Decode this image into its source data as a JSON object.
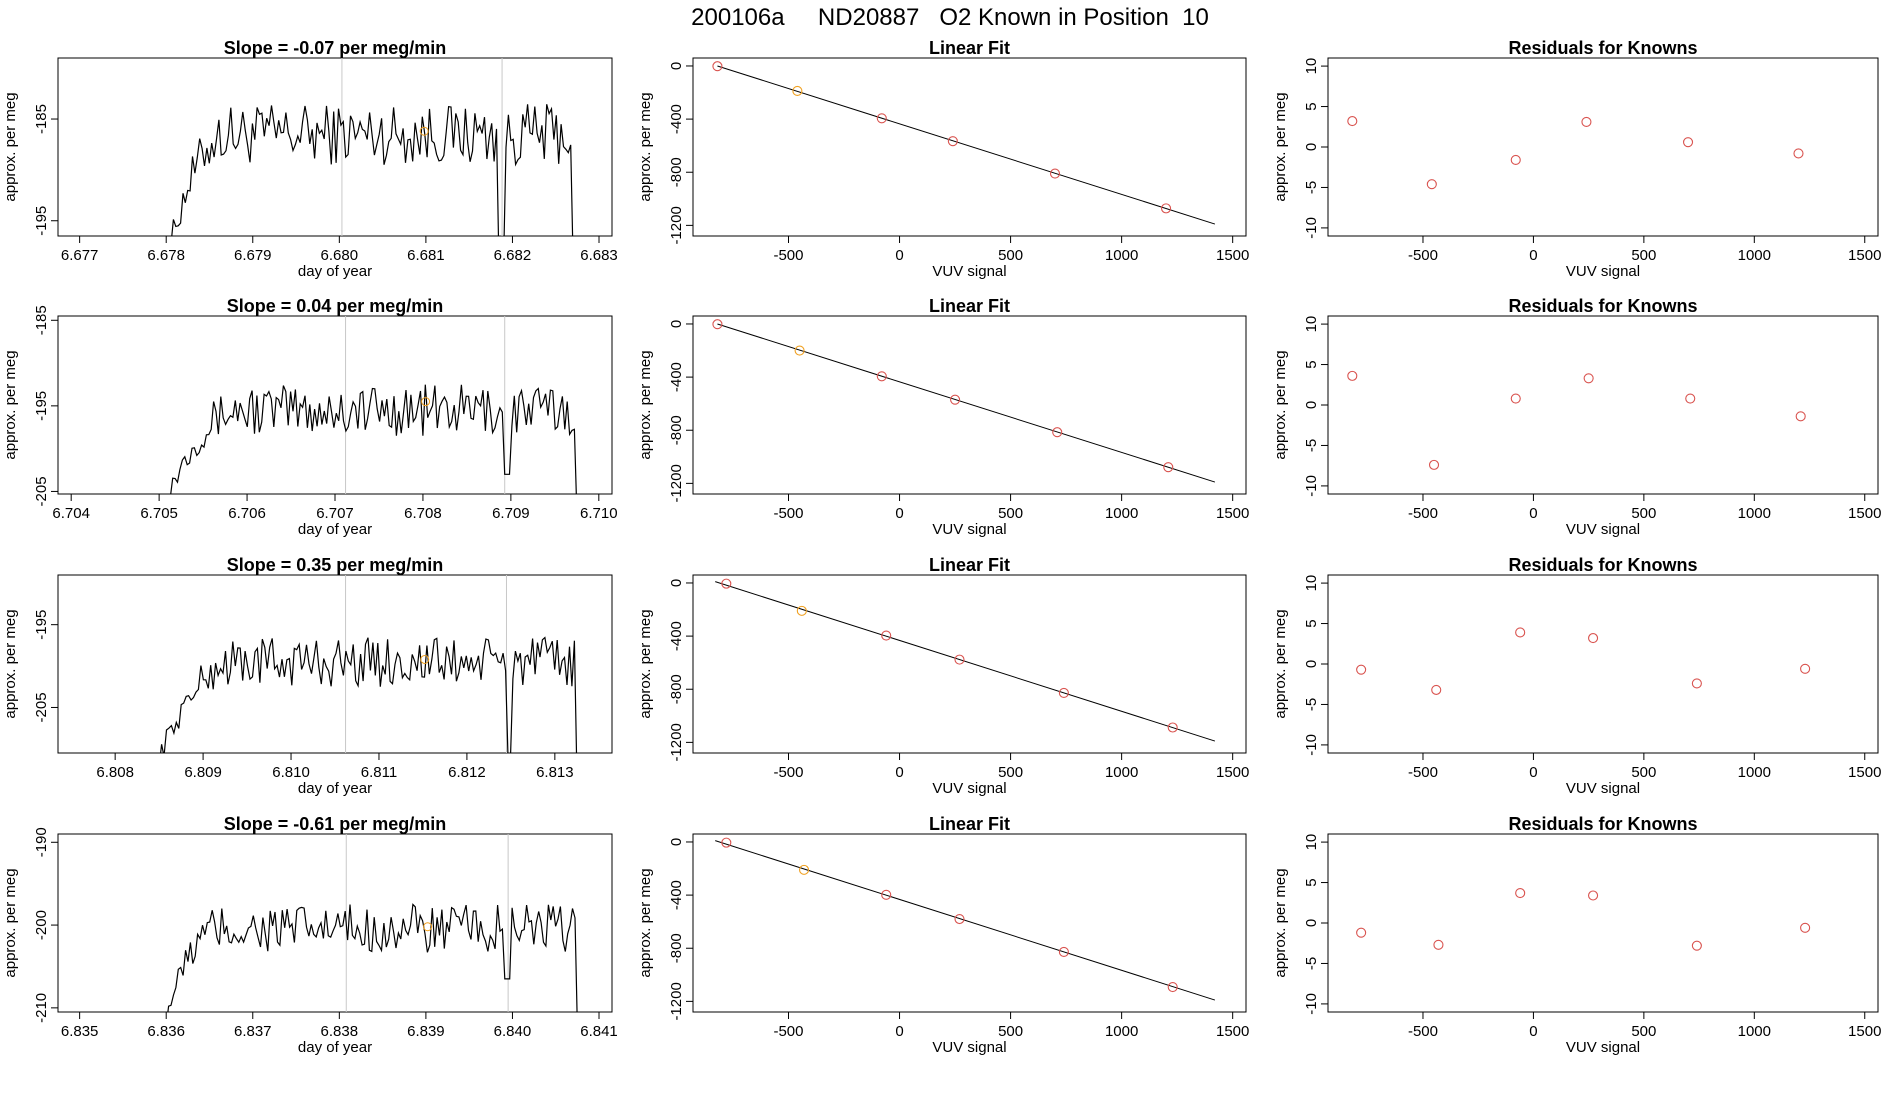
{
  "title": "200106a     ND20887   O2 Known in Position  10",
  "colors": {
    "trace": "#000000",
    "known": "#d9534f",
    "highlight": "#f0a020",
    "vline": "#c8c8c8",
    "frame": "#000000"
  },
  "rows": [
    {
      "timeseries": {
        "title": "Slope =  -0.07  per meg/min",
        "xlabel": "day of year",
        "ylabel": "approx. per meg",
        "xlim": [
          6.67675,
          6.68315
        ],
        "ylim": [
          -196.5,
          -179
        ],
        "xticks": [
          6.677,
          6.678,
          6.679,
          6.68,
          6.681,
          6.682,
          6.683
        ],
        "xtick_labels": [
          "6.677",
          "6.678",
          "6.679",
          "6.680",
          "6.681",
          "6.682",
          "6.683"
        ],
        "yticks": [
          -185,
          -195
        ],
        "ytick_labels": [
          "-185",
          "-195"
        ],
        "vlines": [
          6.68003,
          6.68188
        ],
        "t0": 6.678,
        "t1": 6.6827,
        "start": -199,
        "plateau": -186.5,
        "rise": 0.0007,
        "dips": [
          [
            6.68188,
            -199
          ]
        ],
        "highlight": [
          6.68098,
          -186.2
        ]
      },
      "fit": {
        "title": "Linear Fit",
        "xlabel": "VUV signal",
        "ylabel": "approx. per meg",
        "xlim": [
          -930,
          1560
        ],
        "ylim": [
          -1280,
          60
        ],
        "xticks": [
          -500,
          0,
          500,
          1000,
          1500
        ],
        "xtick_labels": [
          "-500",
          "0",
          "500",
          "1000",
          "1500"
        ],
        "yticks": [
          0,
          -400,
          -800,
          -1200
        ],
        "ytick_labels": [
          "0",
          "-400",
          "-800",
          "-1200"
        ],
        "line": [
          [
            -820,
            0
          ],
          [
            1420,
            -1190
          ]
        ],
        "points": [
          [
            -820,
            -2
          ],
          [
            -460,
            -188
          ],
          [
            -80,
            -394
          ],
          [
            240,
            -566
          ],
          [
            700,
            -810
          ],
          [
            1200,
            -1072
          ]
        ],
        "highlight_index": 1
      },
      "residuals": {
        "title": "Residuals for Knowns",
        "xlabel": "VUV signal",
        "ylabel": "approx. per meg",
        "xlim": [
          -930,
          1560
        ],
        "ylim": [
          -11,
          11
        ],
        "xticks": [
          -500,
          0,
          500,
          1000,
          1500
        ],
        "xtick_labels": [
          "-500",
          "0",
          "500",
          "1000",
          "1500"
        ],
        "yticks": [
          10,
          5,
          0,
          -5,
          -10
        ],
        "ytick_labels": [
          "10",
          "5",
          "0",
          "-5",
          "-10"
        ],
        "points": [
          [
            -820,
            3.2
          ],
          [
            -460,
            -4.6
          ],
          [
            -80,
            -1.6
          ],
          [
            240,
            3.1
          ],
          [
            700,
            0.6
          ],
          [
            1200,
            -0.8
          ]
        ]
      }
    },
    {
      "timeseries": {
        "title": "Slope =  0.04  per meg/min",
        "xlabel": "day of year",
        "ylabel": "approx. per meg",
        "xlim": [
          6.70385,
          6.71015
        ],
        "ylim": [
          -205.3,
          -184.5
        ],
        "xticks": [
          6.704,
          6.705,
          6.706,
          6.707,
          6.708,
          6.709,
          6.71
        ],
        "xtick_labels": [
          "6.704",
          "6.705",
          "6.706",
          "6.707",
          "6.708",
          "6.709",
          "6.710"
        ],
        "yticks": [
          -185,
          -195,
          -205
        ],
        "ytick_labels": [
          "-185",
          "-195",
          "-205"
        ],
        "vlines": [
          6.70712,
          6.70893
        ],
        "t0": 6.7051,
        "t1": 6.70975,
        "start": -205.3,
        "plateau": -195.5,
        "rise": 0.0008,
        "dips": [
          [
            6.70895,
            -203
          ]
        ],
        "highlight": [
          6.70803,
          -194.5
        ]
      },
      "fit": {
        "title": "Linear Fit",
        "xlabel": "VUV signal",
        "ylabel": "approx. per meg",
        "xlim": [
          -930,
          1560
        ],
        "ylim": [
          -1280,
          60
        ],
        "xticks": [
          -500,
          0,
          500,
          1000,
          1500
        ],
        "xtick_labels": [
          "-500",
          "0",
          "500",
          "1000",
          "1500"
        ],
        "yticks": [
          0,
          -400,
          -800,
          -1200
        ],
        "ytick_labels": [
          "0",
          "-400",
          "-800",
          "-1200"
        ],
        "line": [
          [
            -820,
            0
          ],
          [
            1420,
            -1190
          ]
        ],
        "points": [
          [
            -820,
            -2
          ],
          [
            -450,
            -200
          ],
          [
            -80,
            -394
          ],
          [
            250,
            -570
          ],
          [
            710,
            -815
          ],
          [
            1210,
            -1078
          ]
        ],
        "highlight_index": 1
      },
      "residuals": {
        "title": "Residuals for Knowns",
        "xlabel": "VUV signal",
        "ylabel": "approx. per meg",
        "xlim": [
          -930,
          1560
        ],
        "ylim": [
          -11,
          11
        ],
        "xticks": [
          -500,
          0,
          500,
          1000,
          1500
        ],
        "xtick_labels": [
          "-500",
          "0",
          "500",
          "1000",
          "1500"
        ],
        "yticks": [
          10,
          5,
          0,
          -5,
          -10
        ],
        "ytick_labels": [
          "10",
          "5",
          "0",
          "-5",
          "-10"
        ],
        "points": [
          [
            -820,
            3.6
          ],
          [
            -450,
            -7.4
          ],
          [
            -80,
            0.8
          ],
          [
            250,
            3.3
          ],
          [
            710,
            0.8
          ],
          [
            1210,
            -1.4
          ]
        ]
      }
    },
    {
      "timeseries": {
        "title": "Slope =  0.35  per meg/min",
        "xlabel": "day of year",
        "ylabel": "approx. per meg",
        "xlim": [
          6.80735,
          6.81365
        ],
        "ylim": [
          -210.5,
          -189
        ],
        "xticks": [
          6.808,
          6.809,
          6.81,
          6.811,
          6.812,
          6.813
        ],
        "xtick_labels": [
          "6.808",
          "6.809",
          "6.810",
          "6.811",
          "6.812",
          "6.813"
        ],
        "yticks": [
          -195,
          -205
        ],
        "ytick_labels": [
          "-195",
          "-205"
        ],
        "vlines": [
          6.81062,
          6.81245
        ],
        "t0": 6.8085,
        "t1": 6.81325,
        "start": -211,
        "plateau": -199.5,
        "rise": 0.0009,
        "dips": [
          [
            6.81248,
            -211
          ]
        ],
        "highlight": [
          6.81152,
          -199.2
        ]
      },
      "fit": {
        "title": "Linear Fit",
        "xlabel": "VUV signal",
        "ylabel": "approx. per meg",
        "xlim": [
          -930,
          1560
        ],
        "ylim": [
          -1280,
          60
        ],
        "xticks": [
          -500,
          0,
          500,
          1000,
          1500
        ],
        "xtick_labels": [
          "-500",
          "0",
          "500",
          "1000",
          "1500"
        ],
        "yticks": [
          0,
          -400,
          -800,
          -1200
        ],
        "ytick_labels": [
          "0",
          "-400",
          "-800",
          "-1200"
        ],
        "line": [
          [
            -830,
            10
          ],
          [
            1420,
            -1190
          ]
        ],
        "points": [
          [
            -780,
            -5
          ],
          [
            -440,
            -210
          ],
          [
            -60,
            -396
          ],
          [
            270,
            -577
          ],
          [
            740,
            -828
          ],
          [
            1230,
            -1088
          ]
        ],
        "highlight_index": 1
      },
      "residuals": {
        "title": "Residuals for Knowns",
        "xlabel": "VUV signal",
        "ylabel": "approx. per meg",
        "xlim": [
          -930,
          1560
        ],
        "ylim": [
          -11,
          11
        ],
        "xticks": [
          -500,
          0,
          500,
          1000,
          1500
        ],
        "xtick_labels": [
          "-500",
          "0",
          "500",
          "1000",
          "1500"
        ],
        "yticks": [
          10,
          5,
          0,
          -5,
          -10
        ],
        "ytick_labels": [
          "10",
          "5",
          "0",
          "-5",
          "-10"
        ],
        "points": [
          [
            -780,
            -0.7
          ],
          [
            -440,
            -3.2
          ],
          [
            -60,
            3.9
          ],
          [
            270,
            3.2
          ],
          [
            740,
            -2.4
          ],
          [
            1230,
            -0.6
          ]
        ]
      }
    },
    {
      "timeseries": {
        "title": "Slope =  -0.61  per meg/min",
        "xlabel": "day of year",
        "ylabel": "approx. per meg",
        "xlim": [
          6.83475,
          6.84115
        ],
        "ylim": [
          -210.5,
          -189
        ],
        "xticks": [
          6.835,
          6.836,
          6.837,
          6.838,
          6.839,
          6.84,
          6.841
        ],
        "xtick_labels": [
          "6.835",
          "6.836",
          "6.837",
          "6.838",
          "6.839",
          "6.840",
          "6.841"
        ],
        "yticks": [
          -190,
          -200,
          -210
        ],
        "ytick_labels": [
          "-190",
          "-200",
          "-210"
        ],
        "vlines": [
          6.83808,
          6.83995
        ],
        "t0": 6.836,
        "t1": 6.84075,
        "start": -211,
        "plateau": -200.5,
        "rise": 0.0006,
        "dips": [
          [
            6.83995,
            -206.5
          ]
        ],
        "highlight": [
          6.83902,
          -200.2
        ]
      },
      "fit": {
        "title": "Linear Fit",
        "xlabel": "VUV signal",
        "ylabel": "approx. per meg",
        "xlim": [
          -930,
          1560
        ],
        "ylim": [
          -1280,
          60
        ],
        "xticks": [
          -500,
          0,
          500,
          1000,
          1500
        ],
        "xtick_labels": [
          "-500",
          "0",
          "500",
          "1000",
          "1500"
        ],
        "yticks": [
          0,
          -400,
          -800,
          -1200
        ],
        "ytick_labels": [
          "0",
          "-400",
          "-800",
          "-1200"
        ],
        "line": [
          [
            -830,
            10
          ],
          [
            1420,
            -1190
          ]
        ],
        "points": [
          [
            -780,
            -5
          ],
          [
            -430,
            -210
          ],
          [
            -60,
            -398
          ],
          [
            270,
            -580
          ],
          [
            740,
            -828
          ],
          [
            1230,
            -1092
          ]
        ],
        "highlight_index": 1
      },
      "residuals": {
        "title": "Residuals for Knowns",
        "xlabel": "VUV signal",
        "ylabel": "approx. per meg",
        "xlim": [
          -930,
          1560
        ],
        "ylim": [
          -11,
          11
        ],
        "xticks": [
          -500,
          0,
          500,
          1000,
          1500
        ],
        "xtick_labels": [
          "-500",
          "0",
          "500",
          "1000",
          "1500"
        ],
        "yticks": [
          10,
          5,
          0,
          -5,
          -10
        ],
        "ytick_labels": [
          "10",
          "5",
          "0",
          "-5",
          "-10"
        ],
        "points": [
          [
            -780,
            -1.2
          ],
          [
            -430,
            -2.7
          ],
          [
            -60,
            3.7
          ],
          [
            270,
            3.4
          ],
          [
            740,
            -2.8
          ],
          [
            1230,
            -0.6
          ]
        ]
      }
    }
  ],
  "chart_data": [
    {
      "type": "line",
      "title": "Slope =  -0.07  per meg/min",
      "xlabel": "day of year",
      "ylabel": "approx. per meg",
      "xlim": [
        6.67675,
        6.68315
      ],
      "ylim": [
        -196.5,
        -179
      ],
      "grid": false
    },
    {
      "type": "scatter",
      "title": "Linear Fit",
      "xlabel": "VUV signal",
      "ylabel": "approx. per meg",
      "x": [
        -820,
        -460,
        -80,
        240,
        700,
        1200
      ],
      "y": [
        -2,
        -188,
        -394,
        -566,
        -810,
        -1072
      ]
    },
    {
      "type": "scatter",
      "title": "Residuals for Knowns",
      "xlabel": "VUV signal",
      "ylabel": "approx. per meg",
      "x": [
        -820,
        -460,
        -80,
        240,
        700,
        1200
      ],
      "y": [
        3.2,
        -4.6,
        -1.6,
        3.1,
        0.6,
        -0.8
      ]
    },
    {
      "type": "line",
      "title": "Slope =  0.04  per meg/min",
      "xlabel": "day of year",
      "ylabel": "approx. per meg",
      "xlim": [
        6.70385,
        6.71015
      ],
      "ylim": [
        -205.3,
        -184.5
      ]
    },
    {
      "type": "scatter",
      "title": "Linear Fit",
      "x": [
        -820,
        -450,
        -80,
        250,
        710,
        1210
      ],
      "y": [
        -2,
        -200,
        -394,
        -570,
        -815,
        -1078
      ]
    },
    {
      "type": "scatter",
      "title": "Residuals for Knowns",
      "x": [
        -820,
        -450,
        -80,
        250,
        710,
        1210
      ],
      "y": [
        3.6,
        -7.4,
        0.8,
        3.3,
        0.8,
        -1.4
      ]
    },
    {
      "type": "line",
      "title": "Slope =  0.35  per meg/min",
      "xlabel": "day of year",
      "ylabel": "approx. per meg",
      "xlim": [
        6.80735,
        6.81365
      ],
      "ylim": [
        -210.5,
        -189
      ]
    },
    {
      "type": "scatter",
      "title": "Linear Fit",
      "x": [
        -780,
        -440,
        -60,
        270,
        740,
        1230
      ],
      "y": [
        -5,
        -210,
        -396,
        -577,
        -828,
        -1088
      ]
    },
    {
      "type": "scatter",
      "title": "Residuals for Knowns",
      "x": [
        -780,
        -440,
        -60,
        270,
        740,
        1230
      ],
      "y": [
        -0.7,
        -3.2,
        3.9,
        3.2,
        -2.4,
        -0.6
      ]
    },
    {
      "type": "line",
      "title": "Slope =  -0.61  per meg/min",
      "xlabel": "day of year",
      "ylabel": "approx. per meg",
      "xlim": [
        6.83475,
        6.84115
      ],
      "ylim": [
        -210.5,
        -189
      ]
    },
    {
      "type": "scatter",
      "title": "Linear Fit",
      "x": [
        -780,
        -430,
        -60,
        270,
        740,
        1230
      ],
      "y": [
        -5,
        -210,
        -398,
        -580,
        -828,
        -1092
      ]
    },
    {
      "type": "scatter",
      "title": "Residuals for Knowns",
      "x": [
        -780,
        -430,
        -60,
        270,
        740,
        1230
      ],
      "y": [
        -1.2,
        -2.7,
        3.7,
        3.4,
        -2.8,
        -0.6
      ]
    }
  ]
}
